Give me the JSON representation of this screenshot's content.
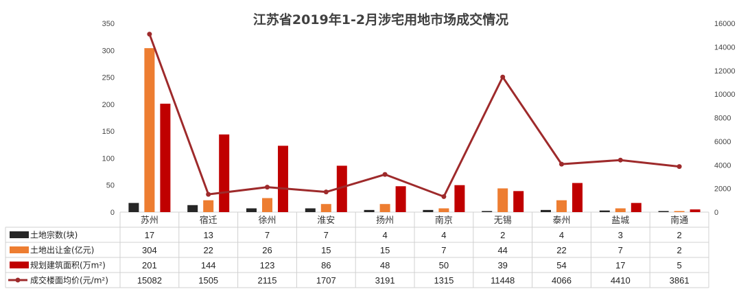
{
  "chart_data": {
    "type": "bar",
    "title": "江苏省2019年1-2月涉宅用地市场成交情况",
    "categories": [
      "苏州",
      "宿迁",
      "徐州",
      "淮安",
      "扬州",
      "南京",
      "无锡",
      "泰州",
      "盐城",
      "南通"
    ],
    "series": [
      {
        "name": "土地宗数(块)",
        "type": "bar",
        "axis": "left",
        "color": "#262626",
        "values": [
          17,
          13,
          7,
          7,
          4,
          4,
          2,
          4,
          3,
          2
        ]
      },
      {
        "name": "土地出让金(亿元)",
        "type": "bar",
        "axis": "left",
        "color": "#ED7D31",
        "values": [
          304,
          22,
          26,
          15,
          15,
          7,
          44,
          22,
          7,
          2
        ]
      },
      {
        "name": "规划建筑面积(万m²)",
        "type": "bar",
        "axis": "left",
        "color": "#C00000",
        "values": [
          201,
          144,
          123,
          86,
          48,
          50,
          39,
          54,
          17,
          5
        ]
      },
      {
        "name": "成交楼面均价(元/m²)",
        "type": "line",
        "axis": "right",
        "color": "#9E2A2B",
        "values": [
          15082,
          1505,
          2115,
          1707,
          3191,
          1315,
          11448,
          4066,
          4410,
          3861
        ]
      }
    ],
    "y_left": {
      "min": 0,
      "max": 350,
      "ticks": [
        "0",
        "50",
        "100",
        "150",
        "200",
        "250",
        "300",
        "350"
      ]
    },
    "y_right": {
      "min": 0,
      "max": 16000,
      "ticks": [
        "0",
        "2000",
        "4000",
        "6000",
        "8000",
        "10000",
        "12000",
        "14000",
        "16000"
      ]
    },
    "grid": false,
    "legend": "data-table"
  }
}
